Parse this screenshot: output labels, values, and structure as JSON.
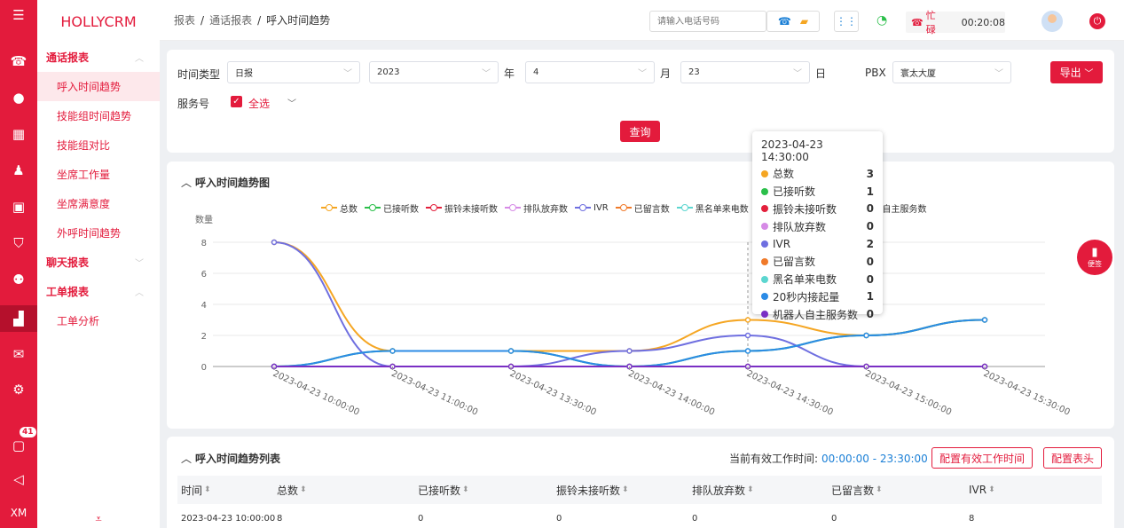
{
  "brand": "HOLLYCRM",
  "rail": {
    "badge": "41",
    "user_initials": "XM"
  },
  "menu": {
    "groups": [
      {
        "label": "通话报表",
        "items": [
          "呼入时间趋势",
          "技能组时间趋势",
          "技能组对比",
          "坐席工作量",
          "坐席满意度",
          "外呼时间趋势"
        ]
      },
      {
        "label": "聊天报表",
        "items": []
      },
      {
        "label": "工单报表",
        "items": [
          "工单分析"
        ]
      }
    ]
  },
  "breadcrumb": {
    "a": "报表",
    "b": "通话报表",
    "c": "呼入时间趋势",
    "sep": "/"
  },
  "topbar": {
    "phone_placeholder": "请输入电话号码",
    "status_text": "忙碌",
    "timer": "00:20:08",
    "colors": {
      "accent": "#e31b3c",
      "wifi": "#2bbf4a"
    }
  },
  "filters": {
    "time_type_label": "时间类型",
    "time_type": "日报",
    "year": "2023",
    "year_unit": "年",
    "month": "4",
    "month_unit": "月",
    "day": "23",
    "day_unit": "日",
    "pbx_label": "PBX",
    "pbx": "寰太大厦",
    "service_label": "服务号",
    "select_all": "全选",
    "query": "查询",
    "export": "导出"
  },
  "chart_panel": {
    "title": "呼入时间趋势图"
  },
  "chart_data": {
    "type": "line",
    "ylabel": "数量",
    "ylim": [
      0,
      8
    ],
    "yticks": [
      0,
      2,
      4,
      6,
      8
    ],
    "categories": [
      "2023-04-23 10:00:00",
      "2023-04-23 11:00:00",
      "2023-04-23 13:30:00",
      "2023-04-23 14:00:00",
      "2023-04-23 14:30:00",
      "2023-04-23 15:00:00",
      "2023-04-23 15:30:00"
    ],
    "legend_position": "top",
    "series": [
      {
        "name": "总数",
        "color": "#f5a623",
        "values": [
          8,
          1,
          1,
          1,
          3,
          2,
          3
        ]
      },
      {
        "name": "已接听数",
        "color": "#2bbf4a",
        "values": [
          0,
          1,
          1,
          0,
          1,
          2,
          3
        ]
      },
      {
        "name": "振铃未接听数",
        "color": "#e3203c",
        "values": [
          0,
          0,
          0,
          0,
          0,
          0,
          0
        ]
      },
      {
        "name": "排队放弃数",
        "color": "#d68be6",
        "values": [
          0,
          0,
          0,
          0,
          0,
          0,
          0
        ]
      },
      {
        "name": "IVR",
        "color": "#6f6fe0",
        "values": [
          8,
          0,
          0,
          1,
          2,
          0,
          0
        ]
      },
      {
        "name": "已留言数",
        "color": "#f07a2a",
        "values": [
          0,
          0,
          0,
          0,
          0,
          0,
          0
        ]
      },
      {
        "name": "黑名单来电数",
        "color": "#5cd6d0",
        "values": [
          0,
          0,
          0,
          0,
          0,
          0,
          0
        ]
      },
      {
        "name": "20秒内接起量",
        "color": "#2b8be6",
        "values": [
          0,
          1,
          1,
          0,
          1,
          2,
          3
        ]
      },
      {
        "name": "机器人自主服务数",
        "color": "#7a2fc4",
        "values": [
          0,
          0,
          0,
          0,
          0,
          0,
          0
        ]
      }
    ],
    "tooltip": {
      "title": "2023-04-23 14:30:00",
      "rows": [
        {
          "name": "总数",
          "value": "3",
          "color": "#f5a623"
        },
        {
          "name": "已接听数",
          "value": "1",
          "color": "#2bbf4a"
        },
        {
          "name": "振铃未接听数",
          "value": "0",
          "color": "#e3203c"
        },
        {
          "name": "排队放弃数",
          "value": "0",
          "color": "#d68be6"
        },
        {
          "name": "IVR",
          "value": "2",
          "color": "#6f6fe0"
        },
        {
          "name": "已留言数",
          "value": "0",
          "color": "#f07a2a"
        },
        {
          "name": "黑名单来电数",
          "value": "0",
          "color": "#5cd6d0"
        },
        {
          "name": "20秒内接起量",
          "value": "1",
          "color": "#2b8be6"
        },
        {
          "name": "机器人自主服务数",
          "value": "0",
          "color": "#7a2fc4"
        }
      ]
    }
  },
  "note_button": "便签",
  "table_panel": {
    "title": "呼入时间趋势列表",
    "worktime_label": "当前有效工作时间:",
    "worktime_value": "00:00:00 - 23:30:00",
    "config_worktime": "配置有效工作时间",
    "config_header": "配置表头",
    "columns": [
      "时间",
      "总数",
      "已接听数",
      "振铃未接听数",
      "排队放弃数",
      "已留言数",
      "IVR"
    ],
    "rows": [
      [
        "2023-04-23 10:00:00",
        "8",
        "0",
        "0",
        "0",
        "0",
        "8"
      ]
    ]
  }
}
